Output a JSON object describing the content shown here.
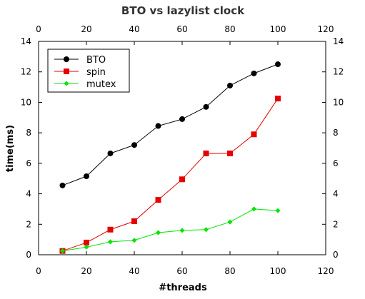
{
  "chart_data": {
    "type": "line",
    "title": "BTO vs lazylist clock",
    "xlabel": "#threads",
    "ylabel": "time(ms)",
    "xlim": [
      0,
      120
    ],
    "ylim": [
      0,
      14
    ],
    "xticks": [
      0,
      20,
      40,
      60,
      80,
      100,
      120
    ],
    "yticks": [
      0,
      2,
      4,
      6,
      8,
      10,
      12,
      14
    ],
    "grid": false,
    "legend_position": "top-left",
    "x": [
      10,
      20,
      30,
      40,
      50,
      60,
      70,
      80,
      90,
      100
    ],
    "series": [
      {
        "name": "BTO",
        "color": "#000000",
        "marker": "circle",
        "values": [
          4.55,
          5.15,
          6.65,
          7.2,
          8.45,
          8.9,
          9.7,
          11.1,
          11.9,
          12.5
        ]
      },
      {
        "name": "spin",
        "color": "#e60000",
        "marker": "square",
        "values": [
          0.25,
          0.8,
          1.65,
          2.2,
          3.6,
          4.95,
          6.65,
          6.65,
          7.9,
          10.25
        ]
      },
      {
        "name": "mutex",
        "color": "#00e600",
        "marker": "diamond",
        "values": [
          0.25,
          0.5,
          0.85,
          0.95,
          1.45,
          1.6,
          1.65,
          2.15,
          3.0,
          2.9
        ]
      }
    ]
  }
}
